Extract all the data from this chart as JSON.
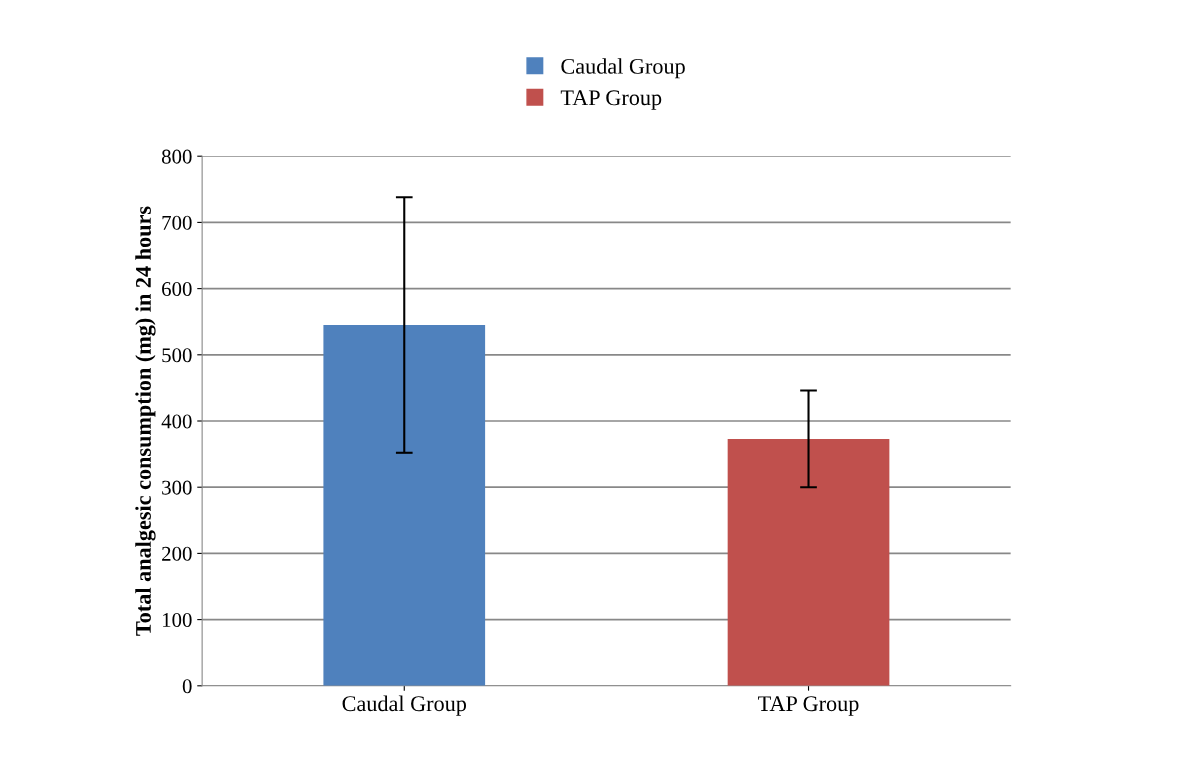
{
  "chart_data": {
    "type": "bar",
    "ylabel": "Total analgesic consumption (mg) in 24 hours",
    "categories": [
      "Caudal Group",
      "TAP Group"
    ],
    "series": [
      {
        "name": "Caudal Group",
        "color": "#4f81bd",
        "values": [
          545,
          null
        ],
        "errors": [
          193,
          null
        ]
      },
      {
        "name": "TAP Group",
        "color": "#c0504d",
        "values": [
          null,
          373
        ],
        "errors": [
          null,
          73
        ]
      }
    ],
    "ylim": [
      0,
      800
    ],
    "yticks": [
      0,
      100,
      200,
      300,
      400,
      500,
      600,
      700,
      800
    ],
    "grid": "y",
    "legend": "top"
  }
}
